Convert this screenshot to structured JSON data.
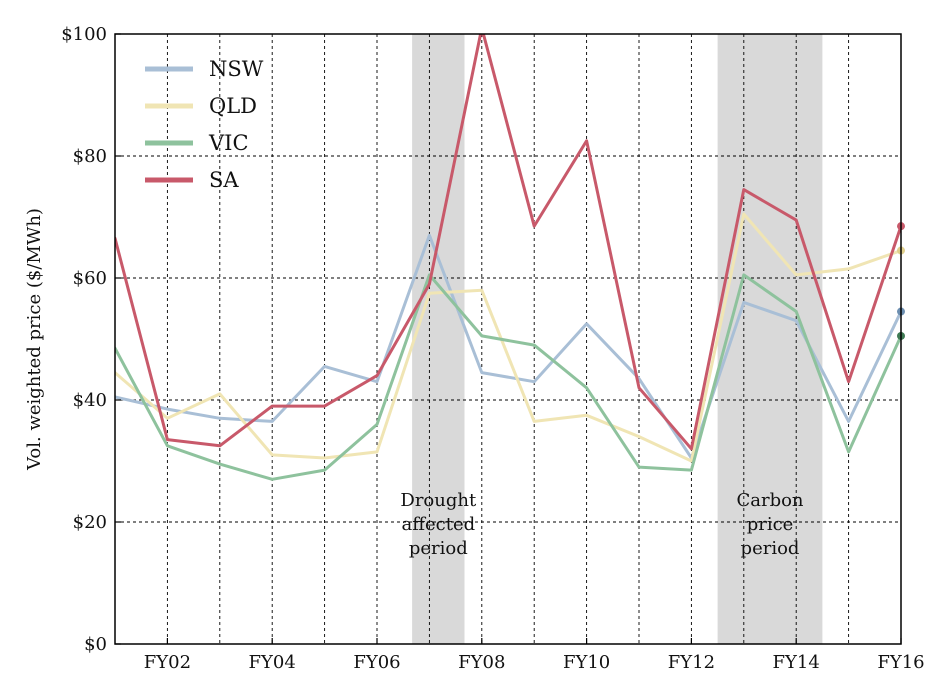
{
  "chart_data": {
    "type": "line",
    "ylabel": "Vol. weighted price ($/MWh)",
    "xlabel": "",
    "ylim": [
      0,
      100
    ],
    "xlim": [
      2001,
      2016
    ],
    "yticks": [
      0,
      20,
      40,
      60,
      80,
      100
    ],
    "ytick_labels": [
      "$0",
      "$20",
      "$40",
      "$60",
      "$80",
      "$100"
    ],
    "xticks": [
      2002,
      2004,
      2006,
      2008,
      2010,
      2012,
      2014,
      2016
    ],
    "xtick_labels": [
      "FY02",
      "FY04",
      "FY06",
      "FY08",
      "FY10",
      "FY12",
      "FY14",
      "FY16"
    ],
    "grid": true,
    "legend_position": "top-left",
    "x": [
      2001,
      2002,
      2003,
      2004,
      2005,
      2006,
      2007,
      2008,
      2009,
      2010,
      2011,
      2012,
      2013,
      2014,
      2015,
      2016
    ],
    "series": [
      {
        "name": "NSW",
        "color": "#a9bfd6",
        "values": [
          40.5,
          38.5,
          37,
          36.5,
          45.5,
          43,
          67,
          44.5,
          43,
          52.5,
          43.5,
          30.5,
          56,
          53,
          36.5,
          54.5
        ]
      },
      {
        "name": "QLD",
        "color": "#f0e5b4",
        "values": [
          44.5,
          37,
          41,
          31,
          30.5,
          31.5,
          57.5,
          58,
          36.5,
          37.5,
          34,
          30,
          70.5,
          60.5,
          61.5,
          64.5
        ]
      },
      {
        "name": "VIC",
        "color": "#8ec29d",
        "values": [
          48.5,
          32.5,
          29.5,
          27,
          28.5,
          36,
          60.5,
          50.5,
          49,
          42,
          29,
          28.5,
          60.5,
          54.5,
          31.5,
          50.5
        ]
      },
      {
        "name": "SA",
        "color": "#c8596a",
        "values": [
          66.5,
          33.5,
          32.5,
          39,
          39,
          44,
          59,
          101,
          68.5,
          82.5,
          42,
          32,
          74.5,
          69.5,
          43,
          68.5
        ]
      }
    ],
    "end_markers": [
      {
        "series": "SA",
        "color": "#c8596a"
      },
      {
        "series": "QLD",
        "color": "#e0cf8c"
      },
      {
        "series": "NSW",
        "color": "#6c8eb0"
      },
      {
        "series": "VIC",
        "color": "#3f7a54"
      }
    ],
    "shaded_periods": [
      {
        "x0": 2006.67,
        "x1": 2007.67,
        "label_lines": [
          "Drought",
          "affected",
          "period"
        ],
        "color": "#d9d9d9"
      },
      {
        "x0": 2012.5,
        "x1": 2014.5,
        "label_lines": [
          "Carbon",
          "price",
          "period"
        ],
        "color": "#d9d9d9"
      }
    ]
  }
}
